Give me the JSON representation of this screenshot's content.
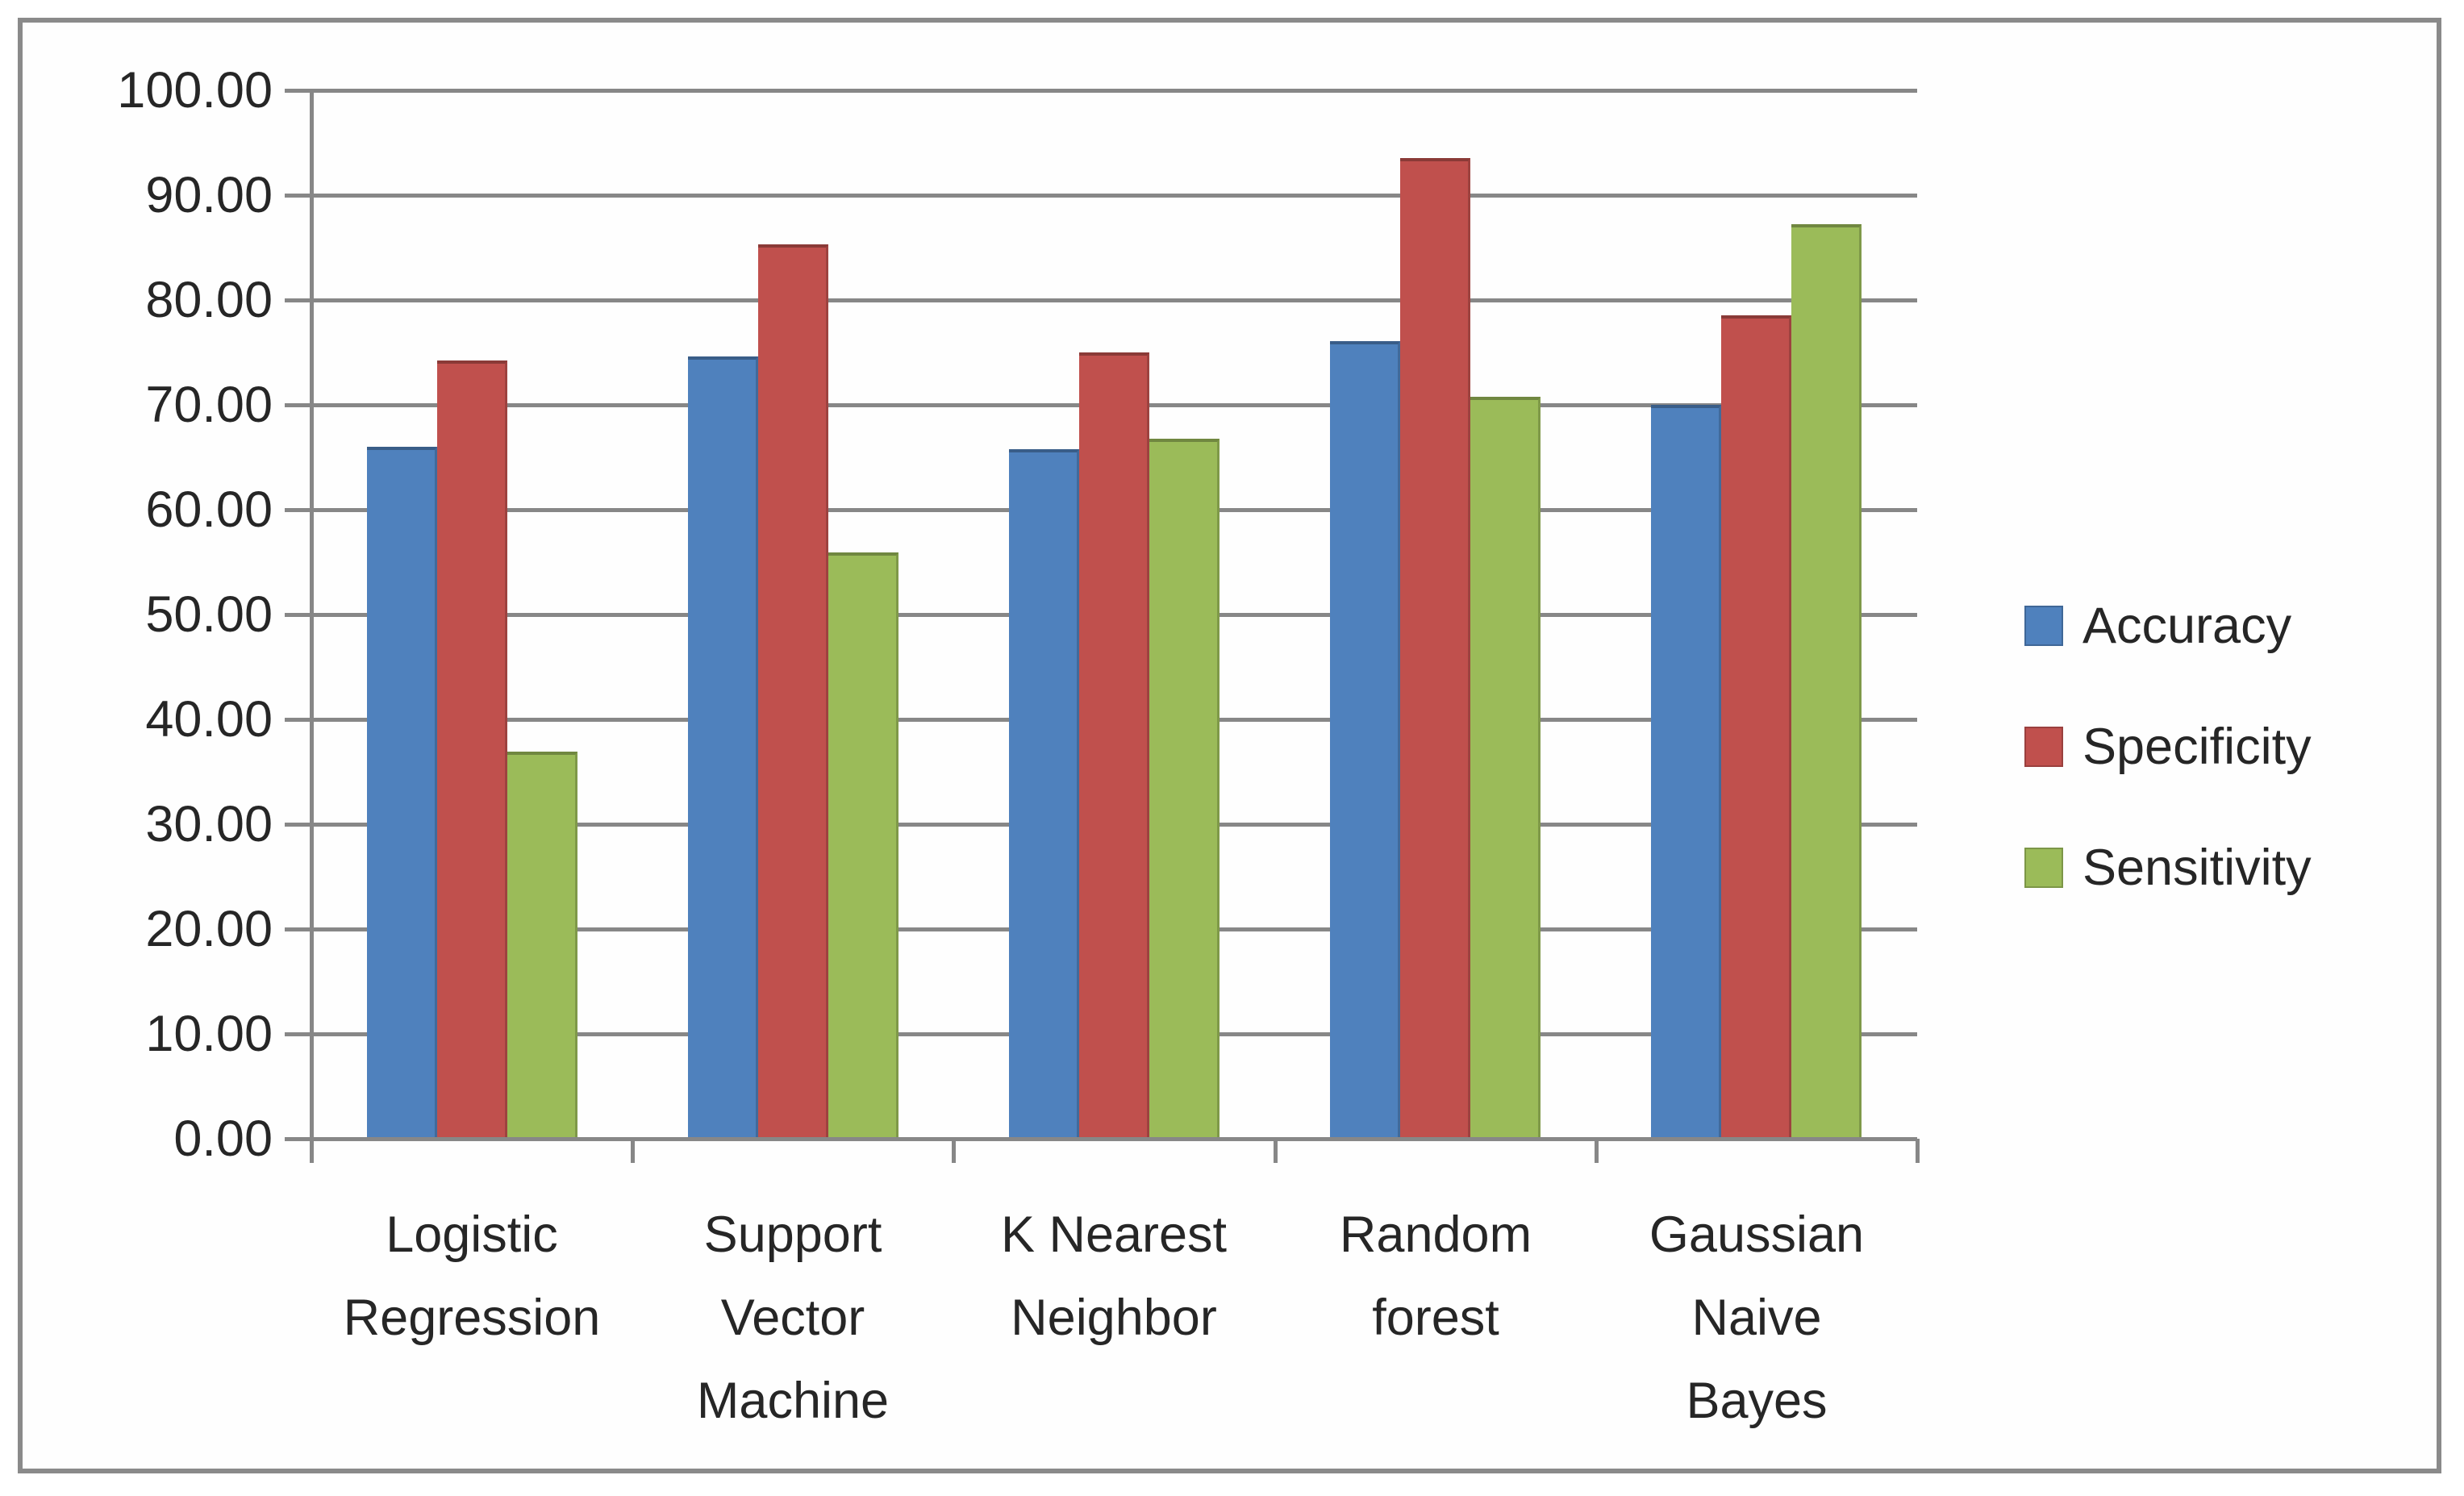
{
  "figure": {
    "background_color": "#ffffff",
    "frame_border_color": "#8a8a8a"
  },
  "chart_data": {
    "type": "bar",
    "title": "",
    "xlabel": "",
    "ylabel": "",
    "categories": [
      "Logistic Regression",
      "Support Vector Machine",
      "K Nearest Neighbor",
      "Random forest",
      "Gaussian Naive Bayes"
    ],
    "category_label_lines": [
      [
        "Logistic",
        "Regression"
      ],
      [
        "Support",
        "Vector",
        "Machine"
      ],
      [
        "K Nearest",
        "Neighbor"
      ],
      [
        "Random",
        "forest"
      ],
      [
        "Gaussian",
        "Naive",
        "Bayes"
      ]
    ],
    "series": [
      {
        "name": "Accuracy",
        "color": "#4F81BD",
        "values": [
          66.0,
          74.6,
          65.8,
          76.1,
          70.0
        ]
      },
      {
        "name": "Specificity",
        "color": "#C0504D",
        "values": [
          74.2,
          85.3,
          75.0,
          93.5,
          78.5
        ]
      },
      {
        "name": "Sensitivity",
        "color": "#9BBB59",
        "values": [
          36.9,
          55.9,
          66.8,
          70.8,
          87.2
        ]
      }
    ],
    "ylim": [
      0,
      100
    ],
    "ytick_step": 10,
    "ytick_labels": [
      "0.00",
      "10.00",
      "20.00",
      "30.00",
      "40.00",
      "50.00",
      "60.00",
      "70.00",
      "80.00",
      "90.00",
      "100.00"
    ],
    "grid": "horizontal-major",
    "gridline_color": "#878787",
    "axis_color": "#878787",
    "text_color": "#262626",
    "legend_position": "right",
    "legend_entries": [
      "Accuracy",
      "Specificity",
      "Sensitivity"
    ]
  }
}
